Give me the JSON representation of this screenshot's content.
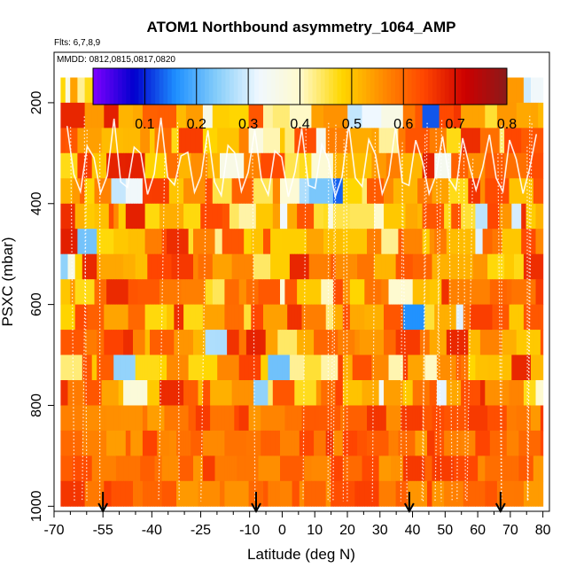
{
  "chart_data": {
    "type": "heatmap",
    "title": "ATOM1 Northbound asymmetry_1064_AMP",
    "flights_label": "Flts: 6,7,8,9",
    "dates_label": "MMDD: 0812,0815,0817,0820",
    "xlabel": "Latitude (deg N)",
    "ylabel": "PSXC (mbar)",
    "xlim": [
      -70,
      82
    ],
    "ylim": [
      1010,
      100
    ],
    "x_ticks": [
      -70,
      -55,
      -40,
      -25,
      -10,
      0,
      10,
      20,
      30,
      40,
      50,
      60,
      70,
      80
    ],
    "x_minor_ticks": [
      -65,
      -60,
      -50,
      -45,
      -35,
      -30,
      -20,
      -15,
      -5,
      5,
      15,
      25,
      35,
      45,
      55,
      65,
      75
    ],
    "y_ticks": [
      200,
      400,
      600,
      800,
      1000
    ],
    "colorbar": {
      "min": 0.0,
      "max": 0.8,
      "ticks": [
        0.1,
        0.2,
        0.3,
        0.4,
        0.5,
        0.6,
        0.7,
        0.8
      ],
      "colors": [
        "#7F00FF",
        "#0000CD",
        "#1E90FF",
        "#87CEFA",
        "#F0F8FF",
        "#FFFACD",
        "#FFD700",
        "#FF8C00",
        "#FF4500",
        "#CC0000",
        "#8B1A1A"
      ]
    },
    "data_lat_range": [
      -68,
      80
    ],
    "pressure_bins": [
      175,
      225,
      275,
      325,
      375,
      425,
      475,
      525,
      575,
      625,
      675,
      725,
      775,
      825,
      875,
      925,
      975
    ],
    "profile_markers": [
      -55,
      -8,
      39,
      67
    ],
    "background_level": 0.58
  }
}
